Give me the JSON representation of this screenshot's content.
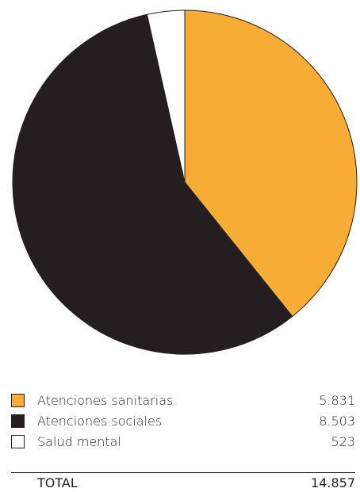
{
  "chart_data": {
    "type": "pie",
    "categories": [
      "Atenciones sanitarias",
      "Atenciones sociales",
      "Salud mental"
    ],
    "values": [
      5831,
      8503,
      523
    ],
    "value_labels": [
      "5.831",
      "8.503",
      "523"
    ],
    "colors": [
      "#f7ad35",
      "#231f20",
      "#ffffff"
    ],
    "total_label": "TOTAL",
    "total_value": "14.857",
    "start_angle": "12 o'clock",
    "direction": "clockwise",
    "legend_position": "bottom"
  }
}
